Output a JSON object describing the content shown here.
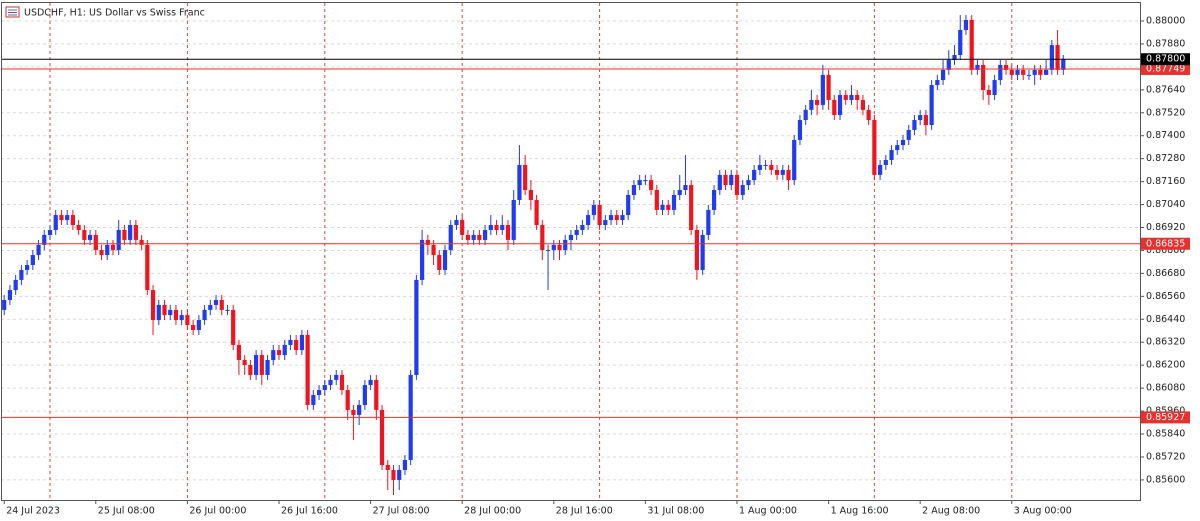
{
  "chart_data": {
    "type": "candlestick",
    "title": "USDCHF, H1:  US Dollar vs Swiss Franc",
    "up_color": "#1f3cf0",
    "down_color": "#f0141e",
    "grid": true,
    "xlim": [
      -0.56,
      198.4
    ],
    "xticks": [
      {
        "value": 0,
        "label": "24 Jul 2023"
      },
      {
        "value": 16,
        "label": "25 Jul 08:00"
      },
      {
        "value": 32,
        "label": "26 Jul 00:00"
      },
      {
        "value": 48,
        "label": "26 Jul 16:00"
      },
      {
        "value": 64,
        "label": "27 Jul 08:00"
      },
      {
        "value": 80,
        "label": "28 Jul 00:00"
      },
      {
        "value": 96,
        "label": "28 Jul 16:00"
      },
      {
        "value": 112,
        "label": "31 Jul 08:00"
      },
      {
        "value": 128,
        "label": "1 Aug 00:00"
      },
      {
        "value": 144,
        "label": "1 Aug 16:00"
      },
      {
        "value": 160,
        "label": "2 Aug 08:00"
      },
      {
        "value": 176,
        "label": "3 Aug 00:00"
      }
    ],
    "xgrid": [
      8,
      32,
      56,
      80,
      104,
      128,
      152,
      176
    ],
    "ylim": [
      0.85495,
      0.88094
    ],
    "yticks": [
      {
        "value": 0.856,
        "label": "0.85600"
      },
      {
        "value": 0.8572,
        "label": "0.85720"
      },
      {
        "value": 0.8584,
        "label": "0.85840"
      },
      {
        "value": 0.8596,
        "label": "0.85960"
      },
      {
        "value": 0.8608,
        "label": "0.86080"
      },
      {
        "value": 0.862,
        "label": "0.86200"
      },
      {
        "value": 0.8632,
        "label": "0.86320"
      },
      {
        "value": 0.8644,
        "label": "0.86440"
      },
      {
        "value": 0.8656,
        "label": "0.86560"
      },
      {
        "value": 0.8668,
        "label": "0.86680"
      },
      {
        "value": 0.868,
        "label": "0.86800"
      },
      {
        "value": 0.8692,
        "label": "0.86920"
      },
      {
        "value": 0.8704,
        "label": "0.87040"
      },
      {
        "value": 0.8716,
        "label": "0.87160"
      },
      {
        "value": 0.8728,
        "label": "0.87280"
      },
      {
        "value": 0.874,
        "label": "0.87400"
      },
      {
        "value": 0.8752,
        "label": "0.87520"
      },
      {
        "value": 0.8764,
        "label": "0.87640"
      },
      {
        "value": 0.8776,
        "label": "0.87760"
      },
      {
        "value": 0.8788,
        "label": "0.87880"
      },
      {
        "value": 0.88,
        "label": "0.88000"
      }
    ],
    "price_lines": [
      {
        "value": 0.87749,
        "label": "0.87749",
        "color": "#e8312e"
      },
      {
        "value": 0.86835,
        "label": "0.86835",
        "color": "#e8312e"
      },
      {
        "value": 0.85927,
        "label": "0.85927",
        "color": "#e8312e"
      },
      {
        "value": 0.878,
        "label": "0.87800",
        "color": "#000000"
      }
    ],
    "open": [
      0.86489,
      0.86541,
      0.86593,
      0.86646,
      0.86698,
      0.86724,
      0.86776,
      0.86829,
      0.86881,
      0.86907,
      0.86985,
      0.86959,
      0.86985,
      0.86933,
      0.86907,
      0.86855,
      0.86881,
      0.86802,
      0.86776,
      0.86829,
      0.86802,
      0.86907,
      0.86855,
      0.86933,
      0.86855,
      0.86829,
      0.86593,
      0.86436,
      0.86515,
      0.86462,
      0.86489,
      0.86436,
      0.86462,
      0.8641,
      0.86384,
      0.86436,
      0.86489,
      0.86515,
      0.86541,
      0.86489,
      0.86489,
      0.86306,
      0.86227,
      0.86201,
      0.86149,
      0.86253,
      0.86149,
      0.86227,
      0.86279,
      0.86253,
      0.86306,
      0.86332,
      0.86279,
      0.86358,
      0.85992,
      0.86044,
      0.8607,
      0.86096,
      0.86123,
      0.86149,
      0.8607,
      0.85966,
      0.8594,
      0.85992,
      0.86096,
      0.86123,
      0.85966,
      0.85678,
      0.85652,
      0.856,
      0.85652,
      0.85704,
      0.86149,
      0.86646,
      0.86855,
      0.86829,
      0.86776,
      0.86698,
      0.86802,
      0.86933,
      0.86959,
      0.86881,
      0.86855,
      0.86881,
      0.86855,
      0.86907,
      0.86933,
      0.86907,
      0.86933,
      0.86855,
      0.87064,
      0.87247,
      0.87116,
      0.87064,
      0.86933,
      0.86802,
      0.86802,
      0.86829,
      0.86802,
      0.86855,
      0.86881,
      0.86907,
      0.86933,
      0.86985,
      0.87038,
      0.86933,
      0.86959,
      0.86985,
      0.86959,
      0.86985,
      0.8709,
      0.87142,
      0.87168,
      0.87168,
      0.87116,
      0.87012,
      0.87038,
      0.87012,
      0.8709,
      0.87116,
      0.87142,
      0.86907,
      0.86698,
      0.86881,
      0.87012,
      0.87116,
      0.87195,
      0.87142,
      0.87195,
      0.8709,
      0.87142,
      0.87168,
      0.87221,
      0.87247,
      0.87247,
      0.87221,
      0.87195,
      0.87221,
      0.87168,
      0.87378,
      0.87482,
      0.87535,
      0.87587,
      0.87561,
      0.87718,
      0.87587,
      0.87508,
      0.87613,
      0.87587,
      0.87613,
      0.87587,
      0.87535,
      0.87482,
      0.87195,
      0.87247,
      0.87273,
      0.87325,
      0.87351,
      0.87378,
      0.8743,
      0.87482,
      0.87508,
      0.87456,
      0.87665,
      0.87691,
      0.87744,
      0.87796,
      0.87822,
      0.87953,
      0.88005,
      0.87744,
      0.8777,
      0.87639,
      0.87613,
      0.87691,
      0.8777,
      0.87744,
      0.87718,
      0.87744,
      0.87718,
      0.87718,
      0.87744,
      0.87718,
      0.87744,
      0.87874,
      0.87744
    ],
    "high": [
      0.86567,
      0.86619,
      0.86672,
      0.86724,
      0.8675,
      0.86802,
      0.86855,
      0.86907,
      0.86933,
      0.87012,
      0.87012,
      0.87012,
      0.87012,
      0.86959,
      0.86933,
      0.86907,
      0.86907,
      0.86829,
      0.86855,
      0.86855,
      0.86959,
      0.86933,
      0.86959,
      0.86959,
      0.86881,
      0.86855,
      0.86619,
      0.86541,
      0.86541,
      0.86515,
      0.86515,
      0.86489,
      0.86489,
      0.86436,
      0.86462,
      0.86515,
      0.86541,
      0.86567,
      0.86567,
      0.86515,
      0.86515,
      0.86332,
      0.86253,
      0.86227,
      0.86279,
      0.86279,
      0.86253,
      0.86306,
      0.86306,
      0.86332,
      0.86358,
      0.86358,
      0.86384,
      0.86384,
      0.8607,
      0.86096,
      0.86123,
      0.86149,
      0.86175,
      0.86175,
      0.86096,
      0.85992,
      0.86018,
      0.86123,
      0.86149,
      0.86149,
      0.85992,
      0.85704,
      0.85678,
      0.85678,
      0.8573,
      0.86175,
      0.86672,
      0.86907,
      0.86881,
      0.86855,
      0.86802,
      0.86829,
      0.86959,
      0.86985,
      0.86985,
      0.86907,
      0.86907,
      0.86907,
      0.86933,
      0.86985,
      0.86959,
      0.86985,
      0.86959,
      0.87116,
      0.87351,
      0.87299,
      0.87168,
      0.8709,
      0.86959,
      0.86829,
      0.86855,
      0.86855,
      0.86881,
      0.86907,
      0.86933,
      0.86959,
      0.87012,
      0.87064,
      0.87064,
      0.86985,
      0.87012,
      0.87012,
      0.87012,
      0.87116,
      0.87168,
      0.87195,
      0.87195,
      0.87195,
      0.87142,
      0.87064,
      0.87064,
      0.87116,
      0.87195,
      0.87299,
      0.87168,
      0.86933,
      0.86907,
      0.87038,
      0.87142,
      0.87221,
      0.87221,
      0.87221,
      0.87221,
      0.87168,
      0.87195,
      0.87247,
      0.87299,
      0.87273,
      0.87273,
      0.87247,
      0.87247,
      0.87247,
      0.87404,
      0.87508,
      0.87561,
      0.87639,
      0.87613,
      0.8777,
      0.87744,
      0.87613,
      0.87639,
      0.87639,
      0.87665,
      0.87639,
      0.87613,
      0.87561,
      0.87508,
      0.87273,
      0.87299,
      0.87351,
      0.87378,
      0.87404,
      0.87456,
      0.87508,
      0.87535,
      0.87535,
      0.87691,
      0.87718,
      0.87796,
      0.87848,
      0.87874,
      0.88031,
      0.88031,
      0.88031,
      0.87796,
      0.87796,
      0.87665,
      0.87718,
      0.87796,
      0.87796,
      0.8777,
      0.8777,
      0.8777,
      0.87744,
      0.8777,
      0.8777,
      0.87796,
      0.87901,
      0.87953,
      0.87822
    ],
    "low": [
      0.86462,
      0.86515,
      0.86567,
      0.86619,
      0.86672,
      0.86698,
      0.8675,
      0.86802,
      0.86855,
      0.86881,
      0.86933,
      0.86933,
      0.86907,
      0.86881,
      0.86829,
      0.86829,
      0.86776,
      0.8675,
      0.8675,
      0.86776,
      0.86776,
      0.86829,
      0.86829,
      0.86829,
      0.86802,
      0.86567,
      0.86358,
      0.8641,
      0.86436,
      0.86436,
      0.8641,
      0.8641,
      0.86384,
      0.86358,
      0.86358,
      0.8641,
      0.86462,
      0.86489,
      0.86462,
      0.86462,
      0.86279,
      0.86149,
      0.86149,
      0.86123,
      0.86123,
      0.86096,
      0.86123,
      0.86201,
      0.86227,
      0.86227,
      0.86279,
      0.86253,
      0.86253,
      0.85966,
      0.85966,
      0.86018,
      0.86044,
      0.8607,
      0.86096,
      0.86044,
      0.85913,
      0.85809,
      0.85887,
      0.85966,
      0.8607,
      0.85913,
      0.85652,
      0.85547,
      0.85521,
      0.85547,
      0.85626,
      0.85678,
      0.86123,
      0.86619,
      0.86776,
      0.86724,
      0.86672,
      0.86672,
      0.86776,
      0.86907,
      0.86855,
      0.86829,
      0.86829,
      0.86829,
      0.86829,
      0.86881,
      0.86881,
      0.86881,
      0.86802,
      0.86829,
      0.87038,
      0.8709,
      0.87012,
      0.86907,
      0.8675,
      0.86593,
      0.8675,
      0.8675,
      0.86776,
      0.86802,
      0.86855,
      0.86881,
      0.86907,
      0.86959,
      0.86907,
      0.86907,
      0.86933,
      0.86933,
      0.86933,
      0.86959,
      0.87064,
      0.87116,
      0.87142,
      0.8709,
      0.86985,
      0.86985,
      0.86985,
      0.86985,
      0.87064,
      0.8709,
      0.86881,
      0.86646,
      0.86672,
      0.86855,
      0.86985,
      0.8709,
      0.87116,
      0.87116,
      0.87064,
      0.87064,
      0.87116,
      0.87142,
      0.87195,
      0.87221,
      0.87195,
      0.87168,
      0.87168,
      0.87116,
      0.87142,
      0.87351,
      0.87456,
      0.87508,
      0.87508,
      0.87535,
      0.87535,
      0.87482,
      0.87482,
      0.87561,
      0.87561,
      0.87535,
      0.87508,
      0.87456,
      0.87168,
      0.87168,
      0.87221,
      0.87247,
      0.87299,
      0.87325,
      0.87351,
      0.87404,
      0.87456,
      0.87404,
      0.8743,
      0.87639,
      0.87665,
      0.87718,
      0.8777,
      0.87796,
      0.87927,
      0.87718,
      0.87718,
      0.87587,
      0.87561,
      0.87587,
      0.87665,
      0.87718,
      0.87691,
      0.87691,
      0.87691,
      0.87691,
      0.87665,
      0.87691,
      0.87718,
      0.87718,
      0.87718,
      0.87718
    ],
    "close": [
      0.86541,
      0.86593,
      0.86646,
      0.86698,
      0.86724,
      0.86776,
      0.86829,
      0.86881,
      0.86907,
      0.86985,
      0.86959,
      0.86985,
      0.86933,
      0.86907,
      0.86855,
      0.86881,
      0.86802,
      0.86776,
      0.86829,
      0.86802,
      0.86907,
      0.86855,
      0.86933,
      0.86855,
      0.86829,
      0.86593,
      0.86436,
      0.86515,
      0.86462,
      0.86489,
      0.86436,
      0.86462,
      0.8641,
      0.86384,
      0.86436,
      0.86489,
      0.86515,
      0.86541,
      0.86489,
      0.86489,
      0.86306,
      0.86227,
      0.86201,
      0.86149,
      0.86253,
      0.86149,
      0.86227,
      0.86279,
      0.86253,
      0.86306,
      0.86332,
      0.86279,
      0.86358,
      0.85992,
      0.86044,
      0.8607,
      0.86096,
      0.86123,
      0.86149,
      0.8607,
      0.85966,
      0.8594,
      0.85992,
      0.86096,
      0.86123,
      0.85966,
      0.85678,
      0.85652,
      0.856,
      0.85652,
      0.85704,
      0.86149,
      0.86646,
      0.86855,
      0.86829,
      0.86776,
      0.86698,
      0.86802,
      0.86933,
      0.86959,
      0.86881,
      0.86855,
      0.86881,
      0.86855,
      0.86907,
      0.86933,
      0.86907,
      0.86933,
      0.86855,
      0.87064,
      0.87247,
      0.87116,
      0.87064,
      0.86933,
      0.86802,
      0.86802,
      0.86829,
      0.86802,
      0.86855,
      0.86881,
      0.86907,
      0.86933,
      0.86985,
      0.87038,
      0.86933,
      0.86959,
      0.86985,
      0.86959,
      0.86985,
      0.8709,
      0.87142,
      0.87168,
      0.87168,
      0.87116,
      0.87012,
      0.87038,
      0.87012,
      0.8709,
      0.87116,
      0.87142,
      0.86907,
      0.86698,
      0.86881,
      0.87012,
      0.87116,
      0.87195,
      0.87142,
      0.87195,
      0.8709,
      0.87142,
      0.87168,
      0.87221,
      0.87247,
      0.87247,
      0.87221,
      0.87195,
      0.87221,
      0.87168,
      0.87378,
      0.87482,
      0.87535,
      0.87587,
      0.87561,
      0.87718,
      0.87587,
      0.87508,
      0.87613,
      0.87587,
      0.87613,
      0.87587,
      0.87535,
      0.87482,
      0.87195,
      0.87247,
      0.87273,
      0.87325,
      0.87351,
      0.87378,
      0.8743,
      0.87482,
      0.87508,
      0.87456,
      0.87665,
      0.87691,
      0.87744,
      0.87796,
      0.87822,
      0.87953,
      0.88005,
      0.87744,
      0.8777,
      0.87639,
      0.87613,
      0.87691,
      0.8777,
      0.87744,
      0.87718,
      0.87744,
      0.87718,
      0.87718,
      0.87744,
      0.87718,
      0.87744,
      0.87874,
      0.87744,
      0.878
    ]
  }
}
